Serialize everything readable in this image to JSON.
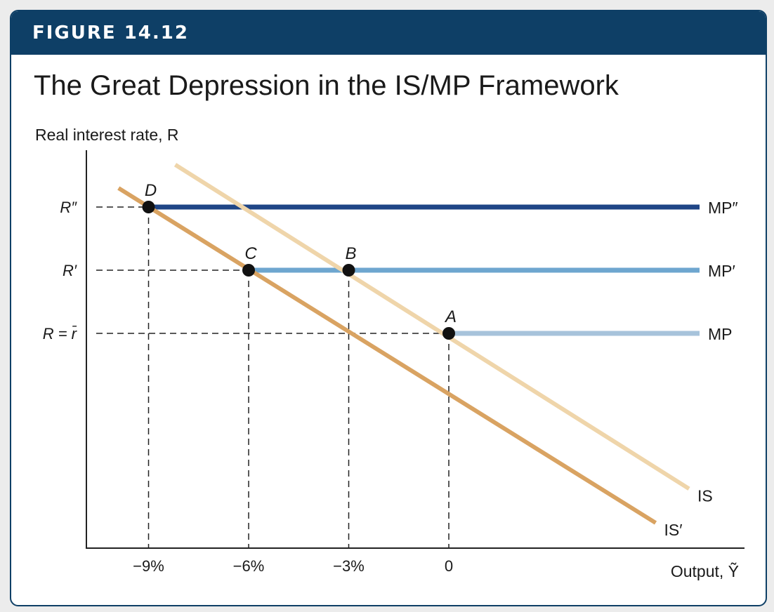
{
  "figure_label": "FIGURE 14.12",
  "title": "The Great Depression in the IS/MP Framework",
  "colors": {
    "banner": "#0e3f66",
    "mp": "#a7c3db",
    "mp1": "#6ea6cf",
    "mp2": "#1f4586",
    "is": "#efd5aa",
    "is1": "#d9a362",
    "point": "#111111"
  },
  "chart_data": {
    "type": "line",
    "ylabel": "Real interest rate, R",
    "xlabel": "Output, Ỹ",
    "x_ticks": [
      {
        "value": -9,
        "label": "−9%"
      },
      {
        "value": -6,
        "label": "−6%"
      },
      {
        "value": -3,
        "label": "−3%"
      },
      {
        "value": 0,
        "label": "0"
      }
    ],
    "y_levels": [
      {
        "key": "rbar",
        "value": 1,
        "label": "R = r̄"
      },
      {
        "key": "r1",
        "value": 2,
        "label": "R′"
      },
      {
        "key": "r2",
        "value": 3,
        "label": "R″"
      }
    ],
    "series": [
      {
        "name": "MP",
        "kind": "horizontal",
        "y": 1,
        "color_key": "mp"
      },
      {
        "name": "MP′",
        "kind": "horizontal",
        "y": 2,
        "color_key": "mp1"
      },
      {
        "name": "MP″",
        "kind": "horizontal",
        "y": 3,
        "color_key": "mp2"
      },
      {
        "name": "IS",
        "kind": "line",
        "color_key": "is",
        "x": [
          -8.2,
          7.2
        ],
        "y": [
          3.67,
          -1.46
        ]
      },
      {
        "name": "IS′",
        "kind": "line",
        "color_key": "is1",
        "x": [
          -9.9,
          6.2
        ],
        "y": [
          3.3,
          -2.0
        ]
      }
    ],
    "points": [
      {
        "label": "A",
        "x": 0,
        "y": 1
      },
      {
        "label": "B",
        "x": -3,
        "y": 2
      },
      {
        "label": "C",
        "x": -6,
        "y": 2
      },
      {
        "label": "D",
        "x": -9,
        "y": 3
      }
    ]
  }
}
